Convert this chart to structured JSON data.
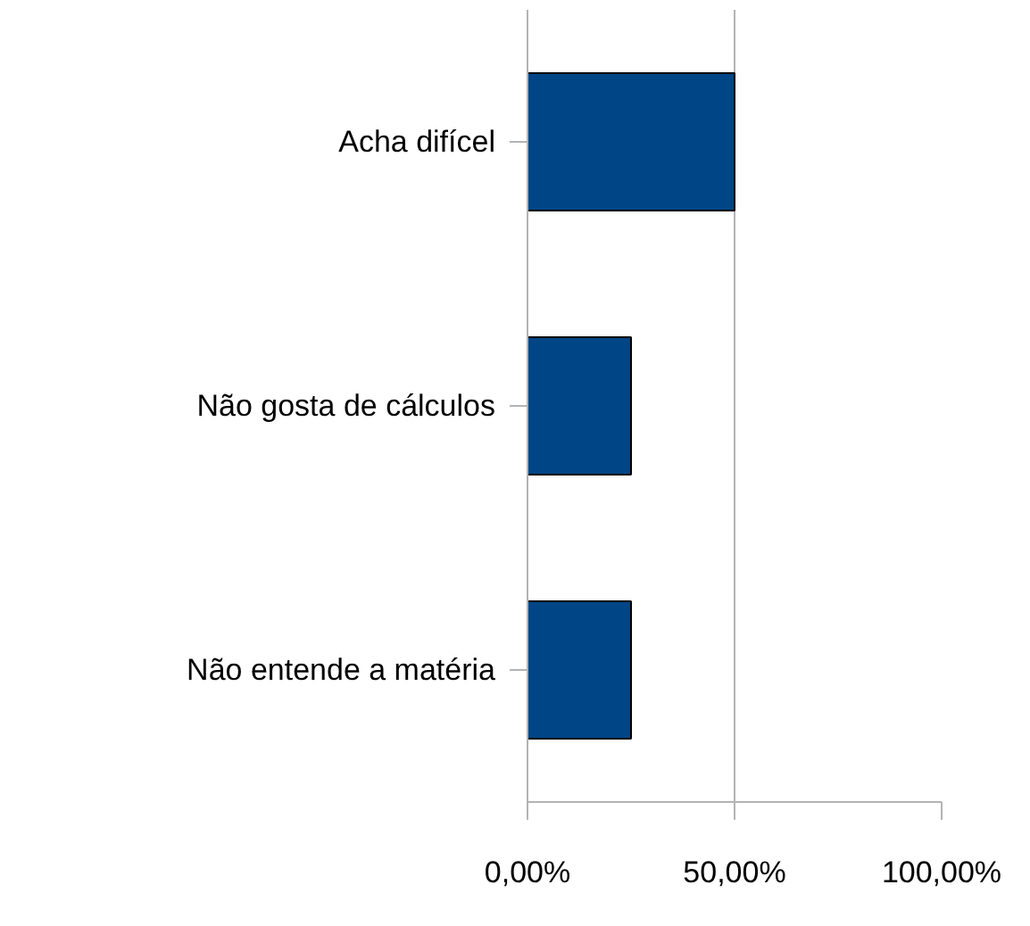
{
  "chart_data": {
    "type": "bar",
    "orientation": "horizontal",
    "categories": [
      "Acha difícel",
      "Não gosta de cálculos",
      "Não entende a matéria"
    ],
    "values": [
      50,
      25,
      25
    ],
    "color": "#004586",
    "xlim": [
      0,
      100
    ],
    "xticks": [
      {
        "value": 0,
        "label": "0,00%"
      },
      {
        "value": 50,
        "label": "50,00%"
      },
      {
        "value": 100,
        "label": "100,00%"
      }
    ],
    "grid": "x"
  }
}
